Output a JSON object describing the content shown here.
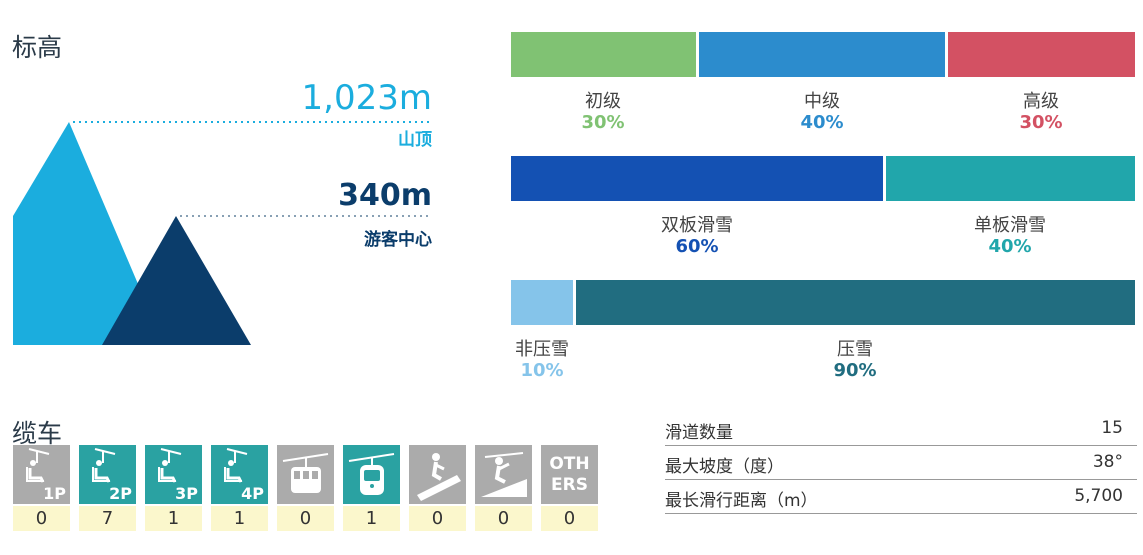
{
  "elevation": {
    "title": "标高",
    "summit": {
      "value": "1,023m",
      "label": "山顶"
    },
    "base": {
      "value": "340m",
      "label": "游客中心"
    }
  },
  "colors": {
    "summit": "#1badde",
    "base": "#0b3d6b",
    "beginner": "#80c273",
    "intermediate": "#2c8ccd",
    "advanced": "#d35163",
    "ski": "#1451b3",
    "snowboard": "#21a6ab",
    "ungroomed": "#85c4ea",
    "groomed": "#216d80",
    "lift_gray": "#ababab",
    "lift_teal": "#2aa2a2",
    "count_bg": "#fbf7cc"
  },
  "difficulty": [
    {
      "label": "初级",
      "percent": "30%",
      "color": "#80c273"
    },
    {
      "label": "中级",
      "percent": "40%",
      "color": "#2c8ccd"
    },
    {
      "label": "高级",
      "percent": "30%",
      "color": "#d35163"
    }
  ],
  "terrain": [
    {
      "label": "双板滑雪",
      "percent": "60%",
      "color": "#1451b3"
    },
    {
      "label": "单板滑雪",
      "percent": "40%",
      "color": "#21a6ab"
    }
  ],
  "grooming": [
    {
      "label": "非压雪",
      "percent": "10%",
      "color": "#85c4ea"
    },
    {
      "label": "压雪",
      "percent": "90%",
      "color": "#216d80"
    }
  ],
  "lifts": {
    "title": "缆车",
    "items": [
      {
        "icon": "chairlift-1p-icon",
        "caption": "1P",
        "count": "0",
        "active": false
      },
      {
        "icon": "chairlift-2p-icon",
        "caption": "2P",
        "count": "7",
        "active": true
      },
      {
        "icon": "chairlift-3p-icon",
        "caption": "3P",
        "count": "1",
        "active": true
      },
      {
        "icon": "chairlift-4p-icon",
        "caption": "4P",
        "count": "1",
        "active": true
      },
      {
        "icon": "ropeway-icon",
        "caption": "",
        "count": "0",
        "active": false
      },
      {
        "icon": "gondola-icon",
        "caption": "",
        "count": "1",
        "active": true
      },
      {
        "icon": "magic-carpet-icon",
        "caption": "",
        "count": "0",
        "active": false
      },
      {
        "icon": "surface-lift-icon",
        "caption": "",
        "count": "0",
        "active": false
      },
      {
        "icon": "others-icon",
        "caption": "OTH\nERS",
        "count": "0",
        "active": false
      }
    ]
  },
  "stats": [
    {
      "label": "滑道数量",
      "value": "15"
    },
    {
      "label": "最大坡度（度）",
      "value": "38°"
    },
    {
      "label": "最长滑行距离（m）",
      "value": "5,700"
    }
  ]
}
